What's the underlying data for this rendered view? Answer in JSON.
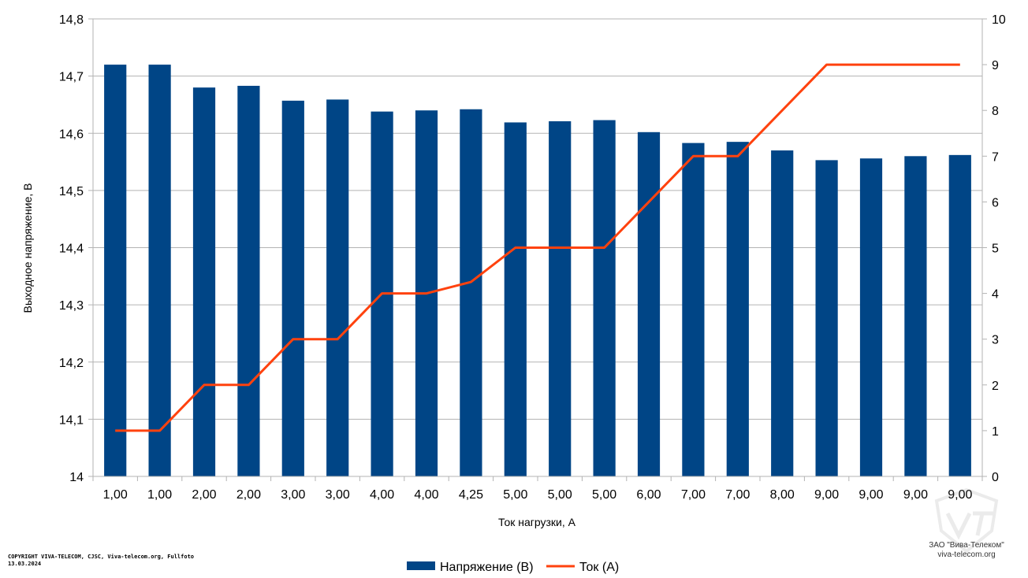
{
  "chart_data": {
    "type": "bar",
    "categories": [
      "1,00",
      "1,00",
      "2,00",
      "2,00",
      "3,00",
      "3,00",
      "4,00",
      "4,00",
      "4,25",
      "5,00",
      "5,00",
      "5,00",
      "6,00",
      "7,00",
      "7,00",
      "8,00",
      "9,00",
      "9,00",
      "9,00",
      "9,00"
    ],
    "series": [
      {
        "name": "Напряжение (В)",
        "type": "bar",
        "axis": "left",
        "color": "#004586",
        "values": [
          14.72,
          14.72,
          14.68,
          14.683,
          14.657,
          14.659,
          14.638,
          14.64,
          14.642,
          14.619,
          14.621,
          14.623,
          14.602,
          14.583,
          14.585,
          14.57,
          14.553,
          14.556,
          14.56,
          14.562
        ]
      },
      {
        "name": "Ток (А)",
        "type": "line",
        "axis": "right",
        "color": "#ff420e",
        "values": [
          1,
          1,
          2,
          2,
          3,
          3,
          4,
          4,
          4.25,
          5,
          5,
          5,
          6,
          7,
          7,
          8,
          9,
          9,
          9,
          9
        ]
      }
    ],
    "xlabel": "Ток нагрузки, А",
    "ylabel": "Выходное напряжение, В",
    "ylim": [
      14,
      14.8
    ],
    "y2lim": [
      0,
      10
    ],
    "y_ticks": [
      "14",
      "14,1",
      "14,2",
      "14,3",
      "14,4",
      "14,5",
      "14,6",
      "14,7",
      "14,8"
    ],
    "y2_ticks": [
      "0",
      "1",
      "2",
      "3",
      "4",
      "5",
      "6",
      "7",
      "8",
      "9",
      "10"
    ],
    "grid": true,
    "legend_position": "bottom"
  },
  "footer": {
    "copyright_line1": "COPYRIGHT VIVA-TELECOM, CJSC, Viva-telecom.org, Fullfoto",
    "copyright_line2": "13.03.2024",
    "company_name": "ЗАО \"Вива-Телеком\"",
    "company_site": "viva-telecom.org"
  }
}
